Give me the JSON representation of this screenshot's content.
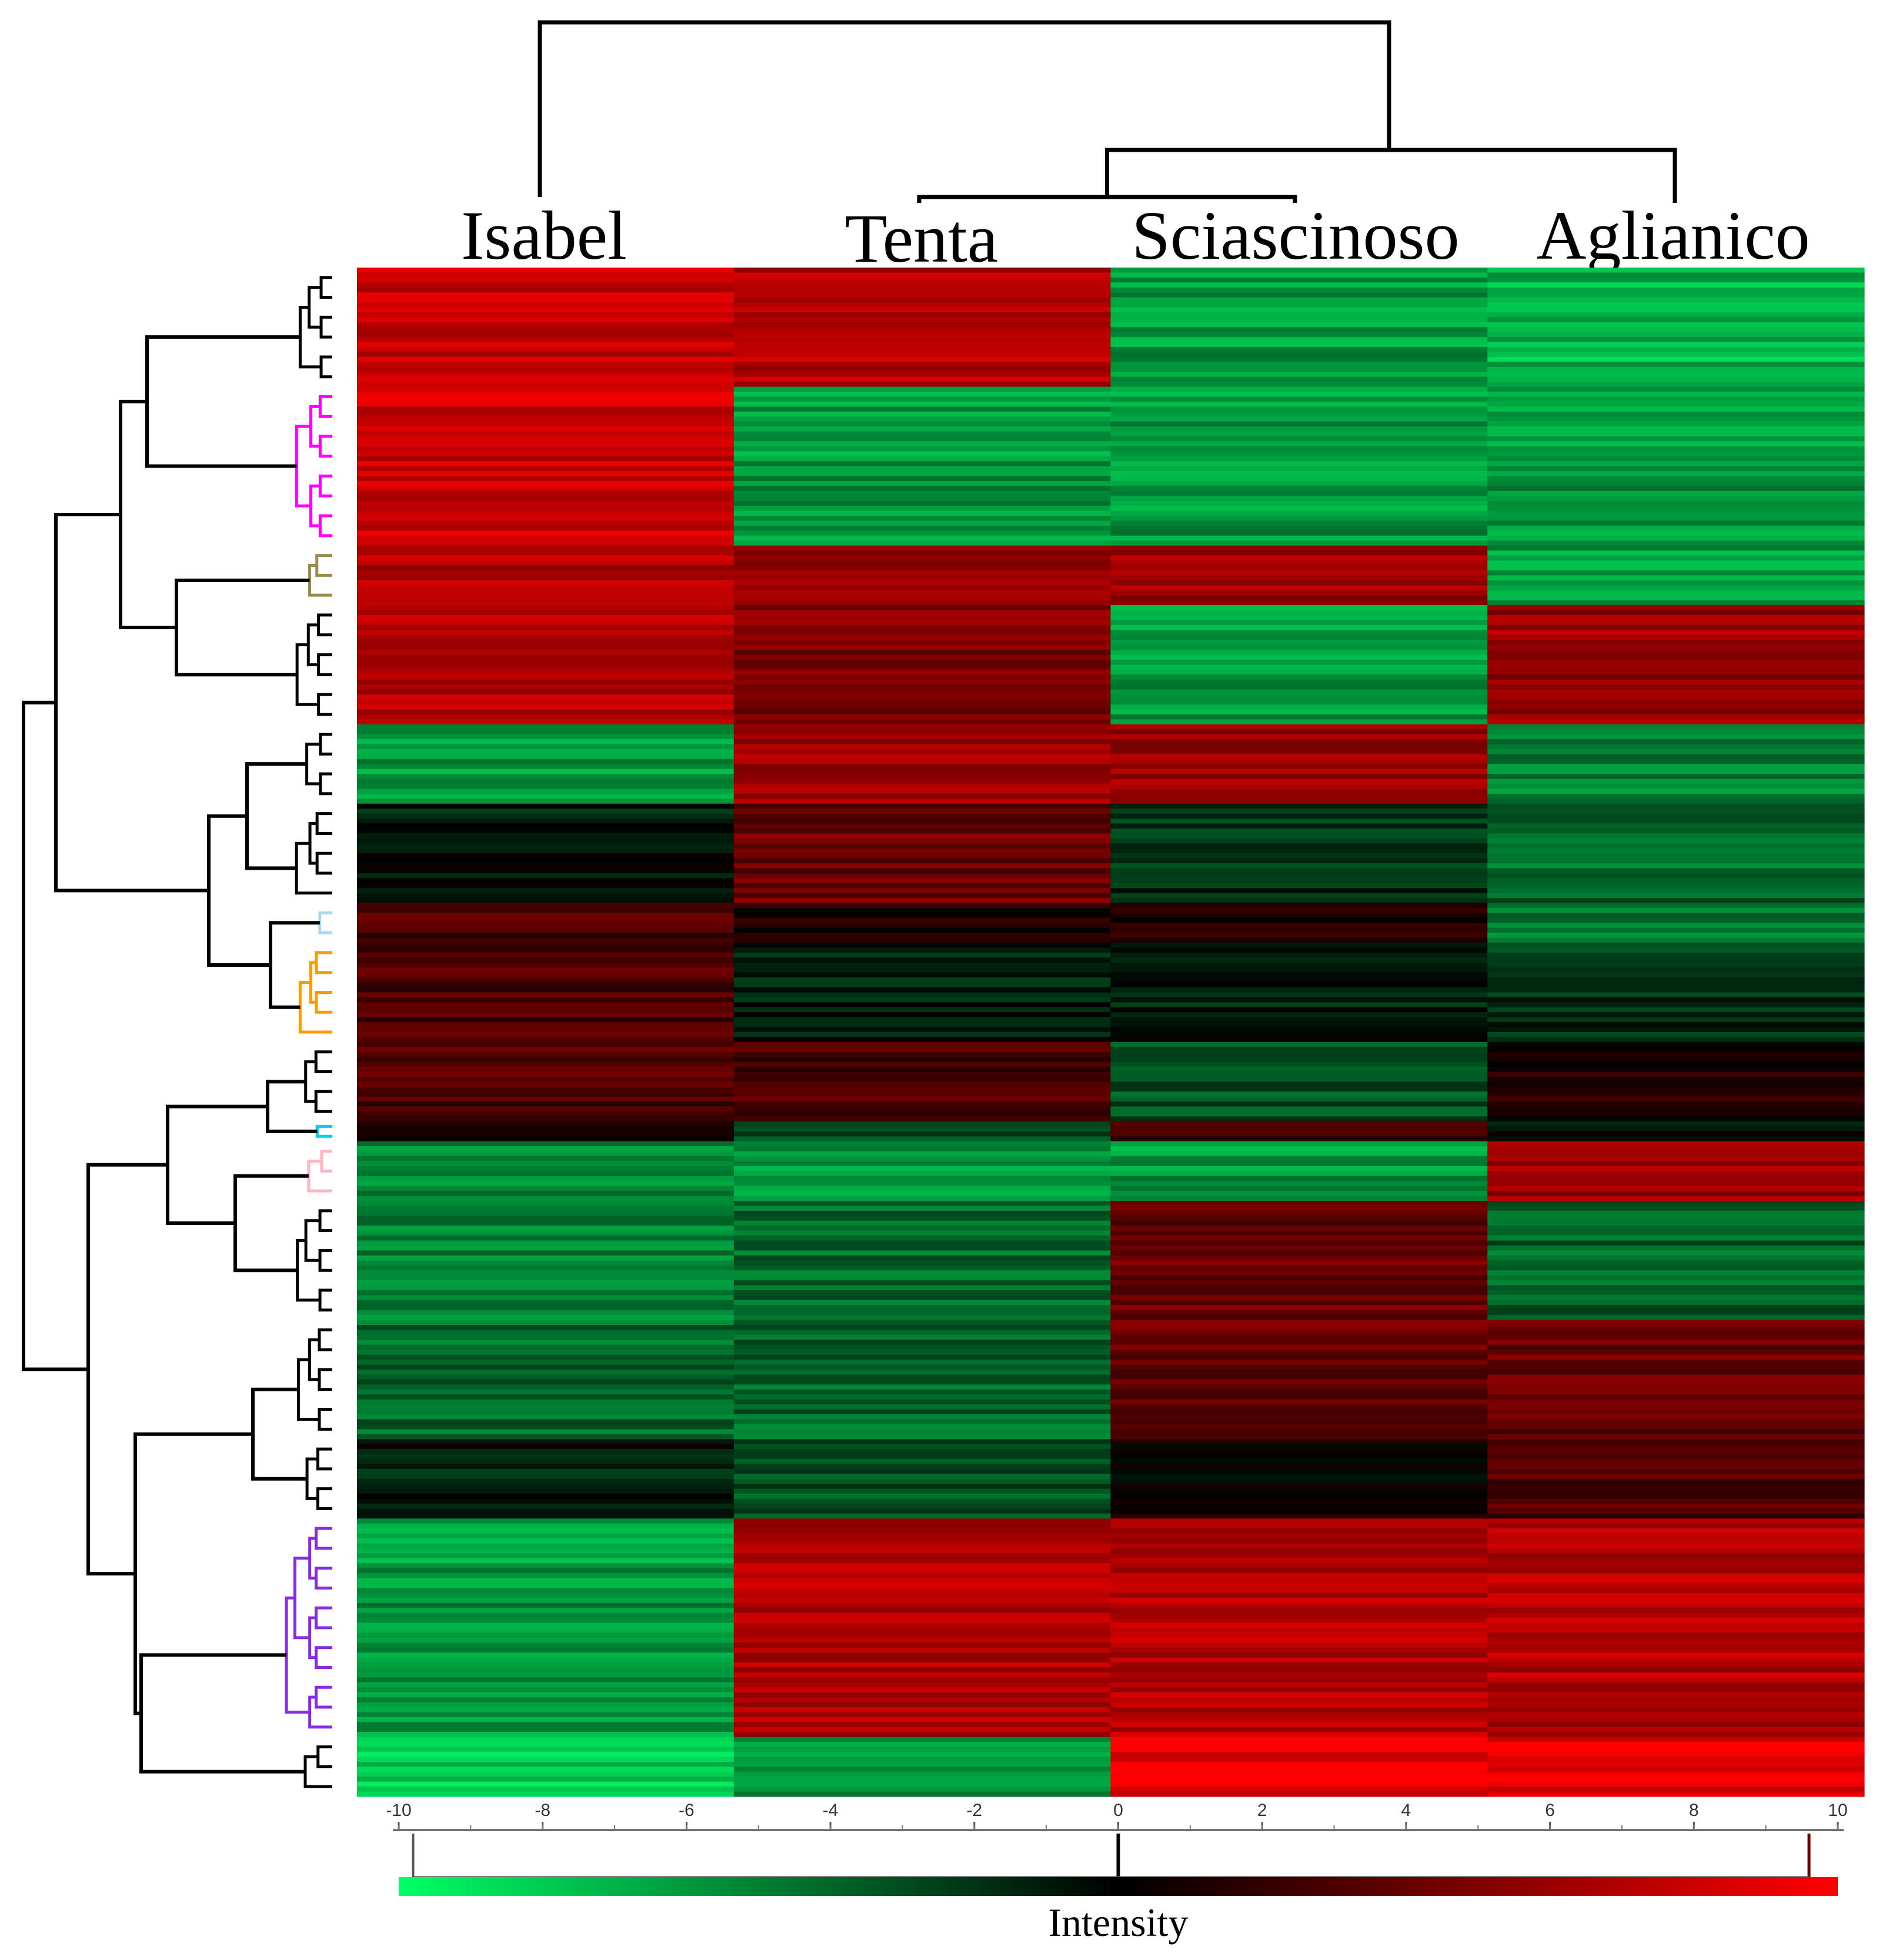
{
  "chart_data": {
    "type": "heatmap",
    "columns": [
      "Isabel",
      "Tenta",
      "Sciascinoso",
      "Aglianico"
    ],
    "column_dendrogram": "((Isabel),((Tenta,Sciascinoso),Aglianico))",
    "row_clusters": [
      {
        "color": "#000000",
        "rows": 6,
        "values": [
          8,
          7,
          -6,
          -7
        ]
      },
      {
        "color": "#ff00ff",
        "rows": 8,
        "values": [
          8,
          -6,
          -6,
          -6
        ]
      },
      {
        "color": "#9b8c4e",
        "rows": 3,
        "values": [
          7,
          6,
          6,
          -6
        ]
      },
      {
        "color": "#000000",
        "rows": 6,
        "values": [
          7,
          5,
          -6,
          6
        ]
      },
      {
        "color": "#000000",
        "rows": 4,
        "values": [
          -6,
          6,
          6,
          -5
        ]
      },
      {
        "color": "#000000",
        "rows": 5,
        "values": [
          -1,
          4,
          -2,
          -4
        ]
      },
      {
        "color": "#a8d8ea",
        "rows": 2,
        "values": [
          3,
          1,
          1,
          -5
        ]
      },
      {
        "color": "#ff9900",
        "rows": 5,
        "values": [
          3,
          -1,
          -1,
          -2
        ]
      },
      {
        "color": "#000000",
        "rows": 4,
        "values": [
          3,
          3,
          -3,
          1
        ]
      },
      {
        "color": "#00ccff",
        "rows": 1,
        "values": [
          2,
          -3,
          3,
          0
        ]
      },
      {
        "color": "#ffb6c1",
        "rows": 3,
        "values": [
          -5,
          -6,
          -6,
          6
        ]
      },
      {
        "color": "#000000",
        "rows": 6,
        "values": [
          -5,
          -4,
          4,
          -4
        ]
      },
      {
        "color": "#000000",
        "rows": 6,
        "values": [
          -4,
          -4,
          4,
          4
        ]
      },
      {
        "color": "#000000",
        "rows": 4,
        "values": [
          -1,
          -3,
          0,
          3
        ]
      },
      {
        "color": "#8a2be2",
        "rows": 11,
        "values": [
          -6,
          7,
          7,
          7
        ]
      },
      {
        "color": "#000000",
        "rows": 3,
        "values": [
          -8,
          -6,
          9,
          9
        ]
      }
    ],
    "colorscale": {
      "min": -10,
      "mid": 0,
      "max": 10,
      "min_color": "#00ff66",
      "mid_color": "#000000",
      "max_color": "#ff0000",
      "ticks": [
        -10,
        -8,
        -6,
        -4,
        -2,
        0,
        2,
        4,
        6,
        8,
        10
      ],
      "markers": [
        -9.8,
        0,
        9.6
      ],
      "title": "Intensity"
    }
  }
}
